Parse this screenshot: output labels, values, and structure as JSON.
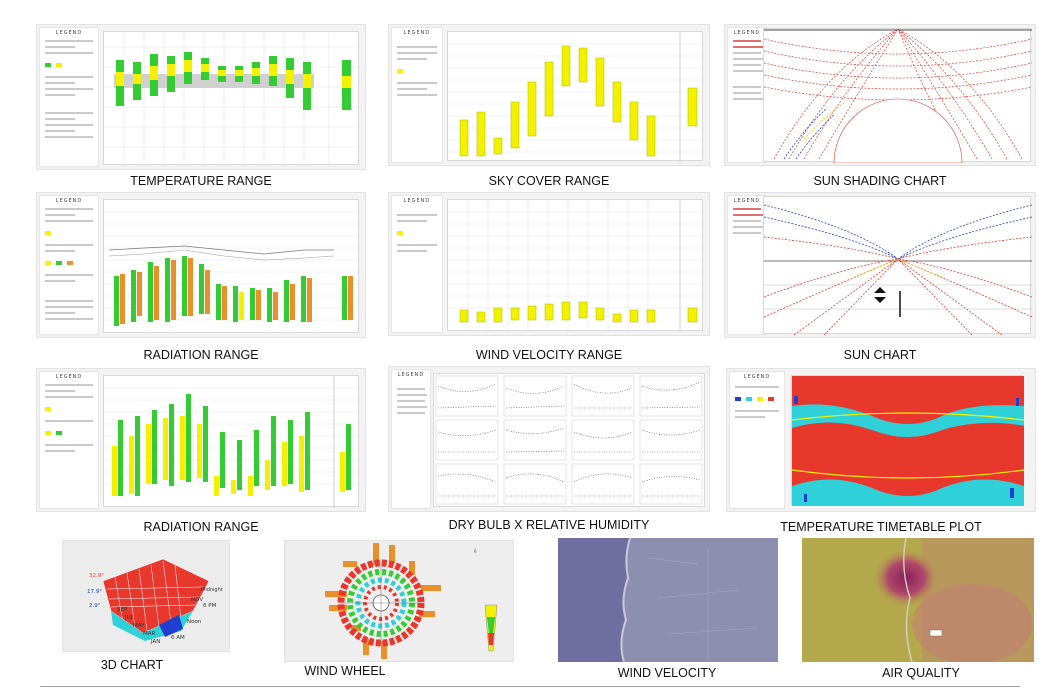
{
  "captions": {
    "temperature_range": "TEMPERATURE RANGE",
    "sky_cover_range": "SKY COVER RANGE",
    "sun_shading_chart": "SUN SHADING CHART",
    "radiation_range_1": "RADIATION RANGE",
    "wind_velocity_range": "WIND VELOCITY RANGE",
    "sun_chart": "SUN CHART",
    "radiation_range_2": "RADIATION RANGE",
    "dry_bulb_rh": "DRY BULB X RELATIVE HUMIDITY",
    "temperature_timetable": "TEMPERATURE TIMETABLE PLOT",
    "chart_3d": "3D CHART",
    "wind_wheel": "WIND WHEEL",
    "wind_velocity": "WIND VELOCITY",
    "air_quality": "AIR QUALITY"
  },
  "legend_title": "LEGEND",
  "colors": {
    "green": "#33cc33",
    "yellow": "#f2f200",
    "red": "#e8372c",
    "blue": "#1f3fd0",
    "cyan": "#2fd0d8",
    "orange": "#e8902a"
  },
  "labels_3d": {
    "t_high": "32.9°",
    "t_mid": "17.9°",
    "t_low": "2.9°",
    "sep": "SEP",
    "jul": "JUL",
    "may": "MAY",
    "mar": "MAR",
    "jan": "JAN",
    "nov": "NOV",
    "midnight": "Midnight",
    "pm6": "6 PM",
    "noon": "Noon",
    "am6": "6 AM"
  }
}
